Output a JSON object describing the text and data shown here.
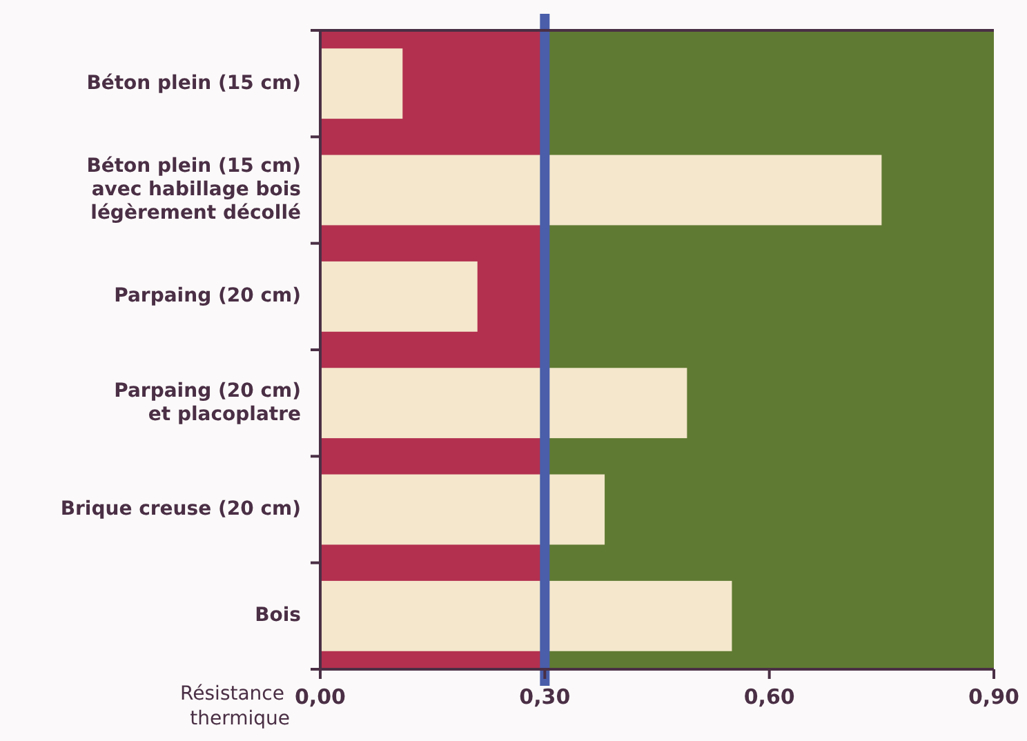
{
  "chart_data": {
    "type": "bar",
    "orientation": "horizontal",
    "categories": [
      "Béton plein (15 cm)",
      "Béton plein (15 cm)\navec habillage bois\nlégèrement décollé",
      "Parpaing (20 cm)",
      "Parpaing (20 cm)\net placoplatre",
      "Brique creuse (20 cm)",
      "Bois"
    ],
    "values": [
      0.11,
      0.75,
      0.21,
      0.49,
      0.38,
      0.55
    ],
    "color": "#f4e7cc",
    "xlabel": "Résistance\nthermique",
    "xlim": [
      0,
      0.9
    ],
    "xticks": [
      {
        "value": 0,
        "label": "0,00"
      },
      {
        "value": 0.3,
        "label": "0,30"
      },
      {
        "value": 0.6,
        "label": "0,60"
      },
      {
        "value": 0.9,
        "label": "0,90"
      }
    ],
    "bands": [
      {
        "axis": "x",
        "from": 0,
        "to": 0.3,
        "color": "#b3304f"
      },
      {
        "axis": "x",
        "from": 0.3,
        "to": 0.9,
        "color": "#5f7a32"
      }
    ],
    "ref_lines": [
      {
        "axis": "x",
        "value": 0.3,
        "color": "#4a5eaa"
      }
    ],
    "grid": false
  }
}
